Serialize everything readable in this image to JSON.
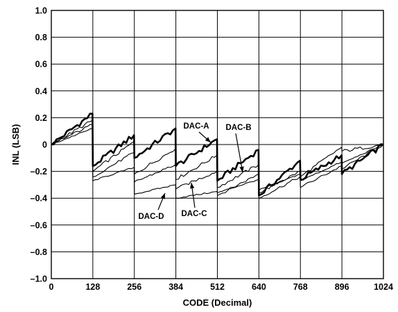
{
  "chart_data": {
    "type": "line",
    "xlabel": "CODE (Decimal)",
    "ylabel": "INL (LSB)",
    "xlim": [
      0,
      1024
    ],
    "ylim": [
      -1.0,
      1.0
    ],
    "x_ticks": [
      0,
      128,
      256,
      384,
      512,
      640,
      768,
      896,
      1024
    ],
    "x_tick_labels": [
      "0",
      "128",
      "256",
      "384",
      "512",
      "640",
      "768",
      "896",
      "1024"
    ],
    "y_ticks": [
      1.0,
      0.8,
      0.6,
      0.4,
      0.2,
      0,
      -0.2,
      -0.4,
      -0.6,
      -0.8,
      -1.0
    ],
    "y_tick_labels": [
      "1.0",
      "0.8",
      "0.6",
      "0.4",
      "0.2",
      "0",
      "–0.2",
      "–0.4",
      "–0.6",
      "–0.8",
      "–1.0"
    ],
    "grid": true,
    "series": [
      {
        "name": "DAC-A",
        "points": [
          [
            0,
            0.0
          ],
          [
            127,
            0.23
          ],
          [
            128,
            -0.16
          ],
          [
            255,
            0.07
          ],
          [
            256,
            -0.1
          ],
          [
            383,
            0.12
          ],
          [
            384,
            -0.16
          ],
          [
            511,
            0.04
          ],
          [
            512,
            -0.27
          ],
          [
            639,
            -0.04
          ],
          [
            640,
            -0.38
          ],
          [
            767,
            -0.12
          ],
          [
            768,
            -0.26
          ],
          [
            895,
            -0.08
          ],
          [
            896,
            -0.22
          ],
          [
            1024,
            0.0
          ]
        ]
      },
      {
        "name": "DAC-B",
        "points": [
          [
            0,
            0.0
          ],
          [
            127,
            0.18
          ],
          [
            128,
            -0.2
          ],
          [
            255,
            0.02
          ],
          [
            256,
            -0.22
          ],
          [
            383,
            -0.03
          ],
          [
            384,
            -0.26
          ],
          [
            511,
            -0.08
          ],
          [
            512,
            -0.32
          ],
          [
            639,
            -0.15
          ],
          [
            640,
            -0.36
          ],
          [
            767,
            -0.2
          ],
          [
            768,
            -0.24
          ],
          [
            895,
            -0.02
          ],
          [
            896,
            -0.05
          ],
          [
            1024,
            0.0
          ]
        ]
      },
      {
        "name": "DAC-C",
        "points": [
          [
            0,
            0.0
          ],
          [
            127,
            0.15
          ],
          [
            128,
            -0.24
          ],
          [
            255,
            -0.06
          ],
          [
            256,
            -0.28
          ],
          [
            383,
            -0.15
          ],
          [
            384,
            -0.33
          ],
          [
            511,
            -0.2
          ],
          [
            512,
            -0.38
          ],
          [
            639,
            -0.22
          ],
          [
            640,
            -0.4
          ],
          [
            767,
            -0.24
          ],
          [
            768,
            -0.32
          ],
          [
            895,
            -0.16
          ],
          [
            896,
            -0.18
          ],
          [
            1024,
            0.0
          ]
        ]
      },
      {
        "name": "DAC-D",
        "points": [
          [
            0,
            0.0
          ],
          [
            127,
            0.12
          ],
          [
            128,
            -0.27
          ],
          [
            255,
            -0.17
          ],
          [
            256,
            -0.37
          ],
          [
            383,
            -0.3
          ],
          [
            384,
            -0.4
          ],
          [
            511,
            -0.35
          ],
          [
            512,
            -0.36
          ],
          [
            639,
            -0.26
          ],
          [
            640,
            -0.34
          ],
          [
            767,
            -0.22
          ],
          [
            768,
            -0.27
          ],
          [
            895,
            -0.13
          ],
          [
            896,
            -0.14
          ],
          [
            1024,
            0.0
          ]
        ]
      }
    ],
    "annotations": [
      {
        "text": "DAC-A",
        "series": "DAC-A"
      },
      {
        "text": "DAC-B",
        "series": "DAC-B"
      },
      {
        "text": "DAC-C",
        "series": "DAC-C"
      },
      {
        "text": "DAC-D",
        "series": "DAC-D"
      }
    ]
  }
}
